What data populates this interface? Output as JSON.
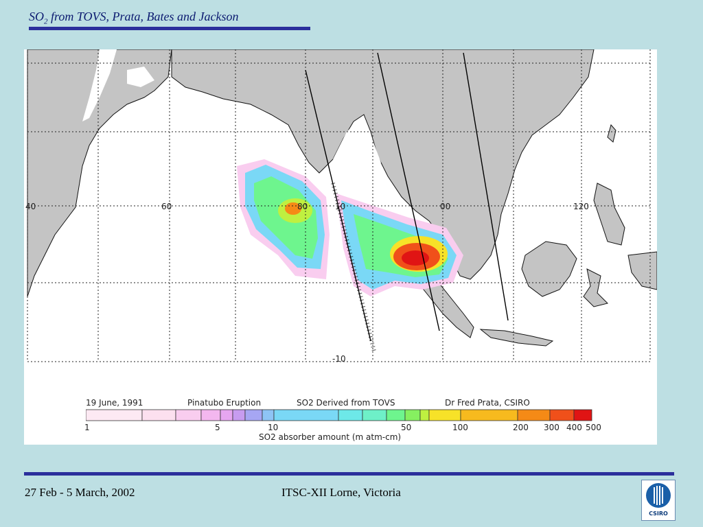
{
  "slide": {
    "title_main": "SO",
    "title_sub": "2",
    "title_rest": " from TOVS, Prata, Bates and Jackson",
    "footer_left": "27 Feb - 5 March, 2002",
    "footer_center": "ITSC-XII Lorne, Victoria",
    "logo_text": "CSIRO"
  },
  "map": {
    "lon_labels": [
      "40",
      "60",
      "80",
      "10",
      "00",
      "120"
    ],
    "lat_label": "-10"
  },
  "legend": {
    "date": "19 June, 1991",
    "event": "Pinatubo Eruption",
    "source": "SO2 Derived from TOVS",
    "credit": "Dr Fred Prata, CSIRO",
    "ticks": [
      "1",
      "5",
      "10",
      "50",
      "100",
      "200",
      "300",
      "400",
      "500"
    ],
    "unit_label": "SO2 absorber amount (m atm-cm)",
    "colors": [
      "#fde9f3",
      "#fce0ef",
      "#f9cdef",
      "#f3b7ef",
      "#e6a6f0",
      "#c79cf0",
      "#a6a6f3",
      "#8ec4f5",
      "#7ad8f6",
      "#6de8e8",
      "#6ef0c8",
      "#6ef58e",
      "#86f060",
      "#bff040",
      "#f7e228",
      "#f7ba1e",
      "#f58a16",
      "#f0501a",
      "#e01414"
    ]
  }
}
